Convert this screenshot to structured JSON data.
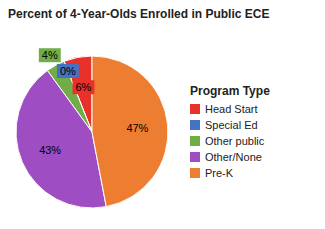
{
  "chart_data": {
    "type": "pie",
    "title": "Percent of 4-Year-Olds Enrolled in Public ECE",
    "categories": [
      "Head Start",
      "Special Ed",
      "Other public",
      "Other/None",
      "Pre-K"
    ],
    "values": [
      6,
      0,
      4,
      43,
      47
    ],
    "value_labels": [
      "6%",
      "0%",
      "4%",
      "43%",
      "47%"
    ],
    "colors": [
      "#e8312a",
      "#4472c4",
      "#70ad47",
      "#9e4ec2",
      "#ed7d31"
    ],
    "legend_title": "Program Type",
    "legend": "right",
    "data_labels": true
  }
}
